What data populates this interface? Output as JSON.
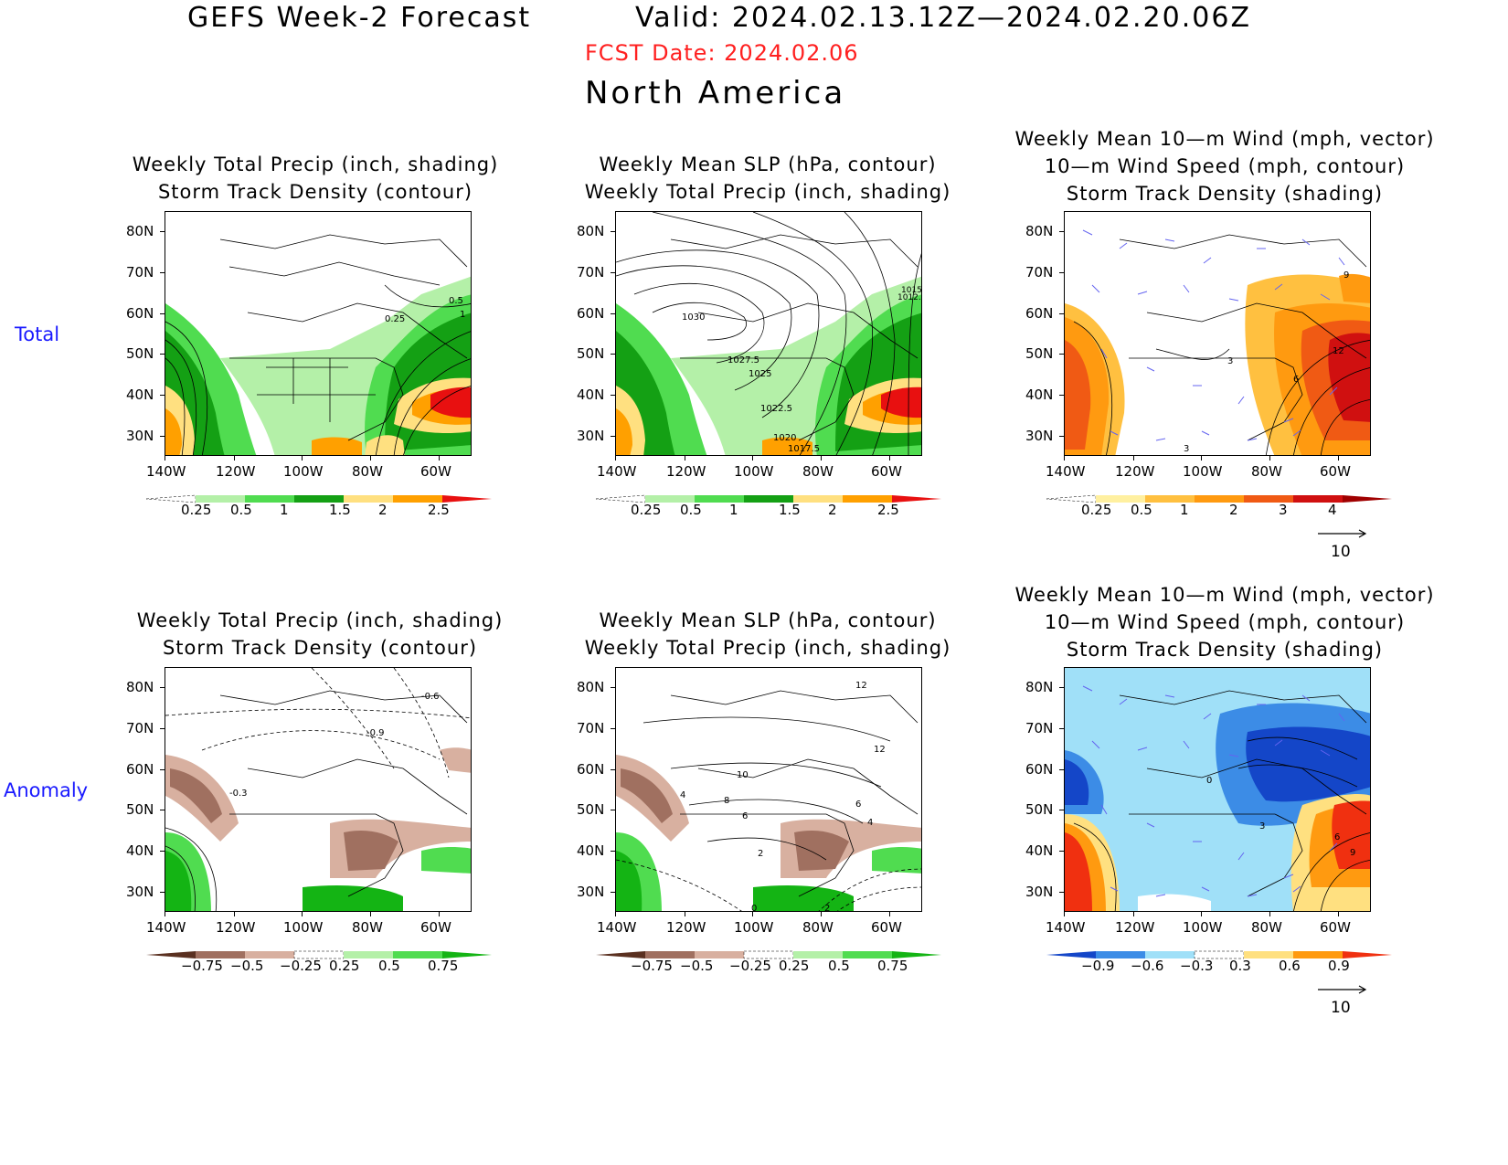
{
  "header": {
    "title": "GEFS Week-2 Forecast",
    "valid": "Valid: 2024.02.13.12Z—2024.02.20.06Z",
    "fcst_date": "FCST Date: 2024.02.06",
    "region": "North America"
  },
  "rows": {
    "total": "Total",
    "anomaly": "Anomaly"
  },
  "panel_titles": {
    "p1": [
      "Weekly Total Precip (inch, shading)",
      "Storm Track Density (contour)"
    ],
    "p2": [
      "Weekly Mean SLP (hPa, contour)",
      "Weekly Total Precip (inch, shading)"
    ],
    "p3": [
      "Weekly Mean 10—m Wind (mph, vector)",
      "10—m Wind Speed (mph, contour)",
      "Storm Track Density (shading)"
    ],
    "p4": [
      "Weekly Total Precip (inch, shading)",
      "Storm Track Density (contour)"
    ],
    "p5": [
      "Weekly Mean SLP (hPa, contour)",
      "Weekly Total Precip (inch, shading)"
    ],
    "p6": [
      "Weekly Mean 10—m Wind (mph, vector)",
      "10—m Wind Speed (mph, contour)",
      "Storm Track Density (shading)"
    ]
  },
  "axes": {
    "lat_labels": [
      "80N",
      "70N",
      "60N",
      "50N",
      "40N",
      "30N"
    ],
    "lon_labels": [
      "140W",
      "120W",
      "100W",
      "80W",
      "60W"
    ]
  },
  "colorbars": {
    "precip_total": {
      "ticks": [
        "0.25",
        "0.5",
        "1",
        "1.5",
        "2",
        "2.5"
      ],
      "colors": [
        "#ffffff",
        "#b4f0a8",
        "#50dc50",
        "#14a014",
        "#ffe080",
        "#ffa000",
        "#e81010"
      ]
    },
    "storm_total": {
      "ticks": [
        "0.25",
        "0.5",
        "1",
        "2",
        "3",
        "4"
      ],
      "colors": [
        "#ffffff",
        "#fff0a0",
        "#ffc040",
        "#ff9a10",
        "#f05a14",
        "#d01010",
        "#a00000"
      ]
    },
    "precip_anom": {
      "ticks": [
        "−0.75",
        "−0.5",
        "−0.25",
        "0.25",
        "0.5",
        "0.75"
      ],
      "colors": [
        "#5a3020",
        "#a07060",
        "#d8b0a0",
        "#ffffff",
        "#b4f0a8",
        "#50dc50",
        "#14b414"
      ]
    },
    "storm_anom": {
      "ticks": [
        "−0.9",
        "−0.6",
        "−0.3",
        "0.3",
        "0.6",
        "0.9"
      ],
      "colors": [
        "#1446c8",
        "#3c8ce6",
        "#a0e0f8",
        "#ffffff",
        "#ffe080",
        "#ff9a10",
        "#f03010"
      ]
    }
  },
  "contour_labels": {
    "p1": [
      "0.5",
      "1",
      "0.25"
    ],
    "p2": [
      "1030",
      "1027.5",
      "1025",
      "1022.5",
      "1020",
      "1017.5",
      "1015",
      "1012.5"
    ],
    "p3": [
      "3",
      "6",
      "12",
      "3",
      "9"
    ],
    "p4": [
      "-0.6",
      "-0.9",
      "-0.3"
    ],
    "p5": [
      "12",
      "12",
      "10",
      "8",
      "6",
      "4",
      "2",
      "6",
      "4",
      "0",
      "2"
    ],
    "p6": [
      "0",
      "3",
      "6",
      "9"
    ]
  },
  "vector_ref": "10"
}
